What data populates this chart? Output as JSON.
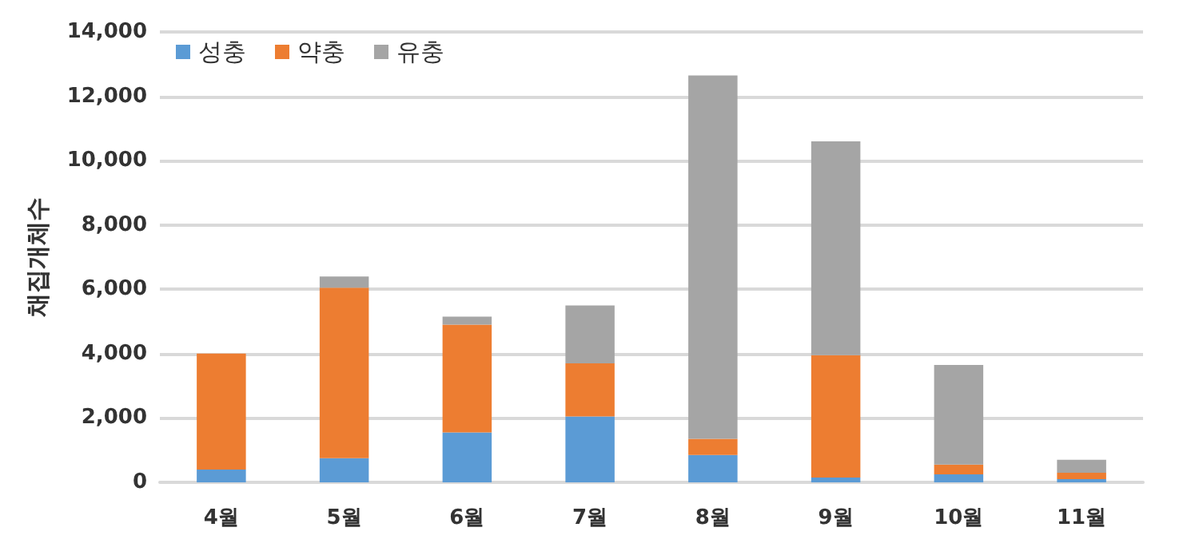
{
  "chart_data": {
    "type": "bar",
    "ylabel": "채집개체수",
    "categories": [
      "4월",
      "5월",
      "6월",
      "7월",
      "8월",
      "9월",
      "10월",
      "11월"
    ],
    "series": [
      {
        "name": "성충",
        "color": "#5b9bd5",
        "values": [
          400,
          750,
          1550,
          2050,
          850,
          150,
          250,
          100
        ]
      },
      {
        "name": "약충",
        "color": "#ed7d31",
        "values": [
          3600,
          5300,
          3350,
          1650,
          500,
          3800,
          300,
          200
        ]
      },
      {
        "name": "유충",
        "color": "#a5a5a5",
        "values": [
          0,
          350,
          250,
          1800,
          11300,
          6650,
          3100,
          400
        ]
      }
    ],
    "stacked": true,
    "ylim": [
      0,
      14000
    ],
    "yticks": [
      0,
      {
        "value": 2000,
        "label": "2,000"
      },
      {
        "value": 4000,
        "label": "4,000"
      },
      {
        "value": 6000,
        "label": "6,000"
      },
      {
        "value": 8000,
        "label": "8,000"
      },
      {
        "value": 10000,
        "label": "10,000"
      },
      {
        "value": 12000,
        "label": "12,000"
      },
      {
        "value": 14000,
        "label": "14,000"
      }
    ],
    "grid": "y",
    "legend": "top left"
  }
}
